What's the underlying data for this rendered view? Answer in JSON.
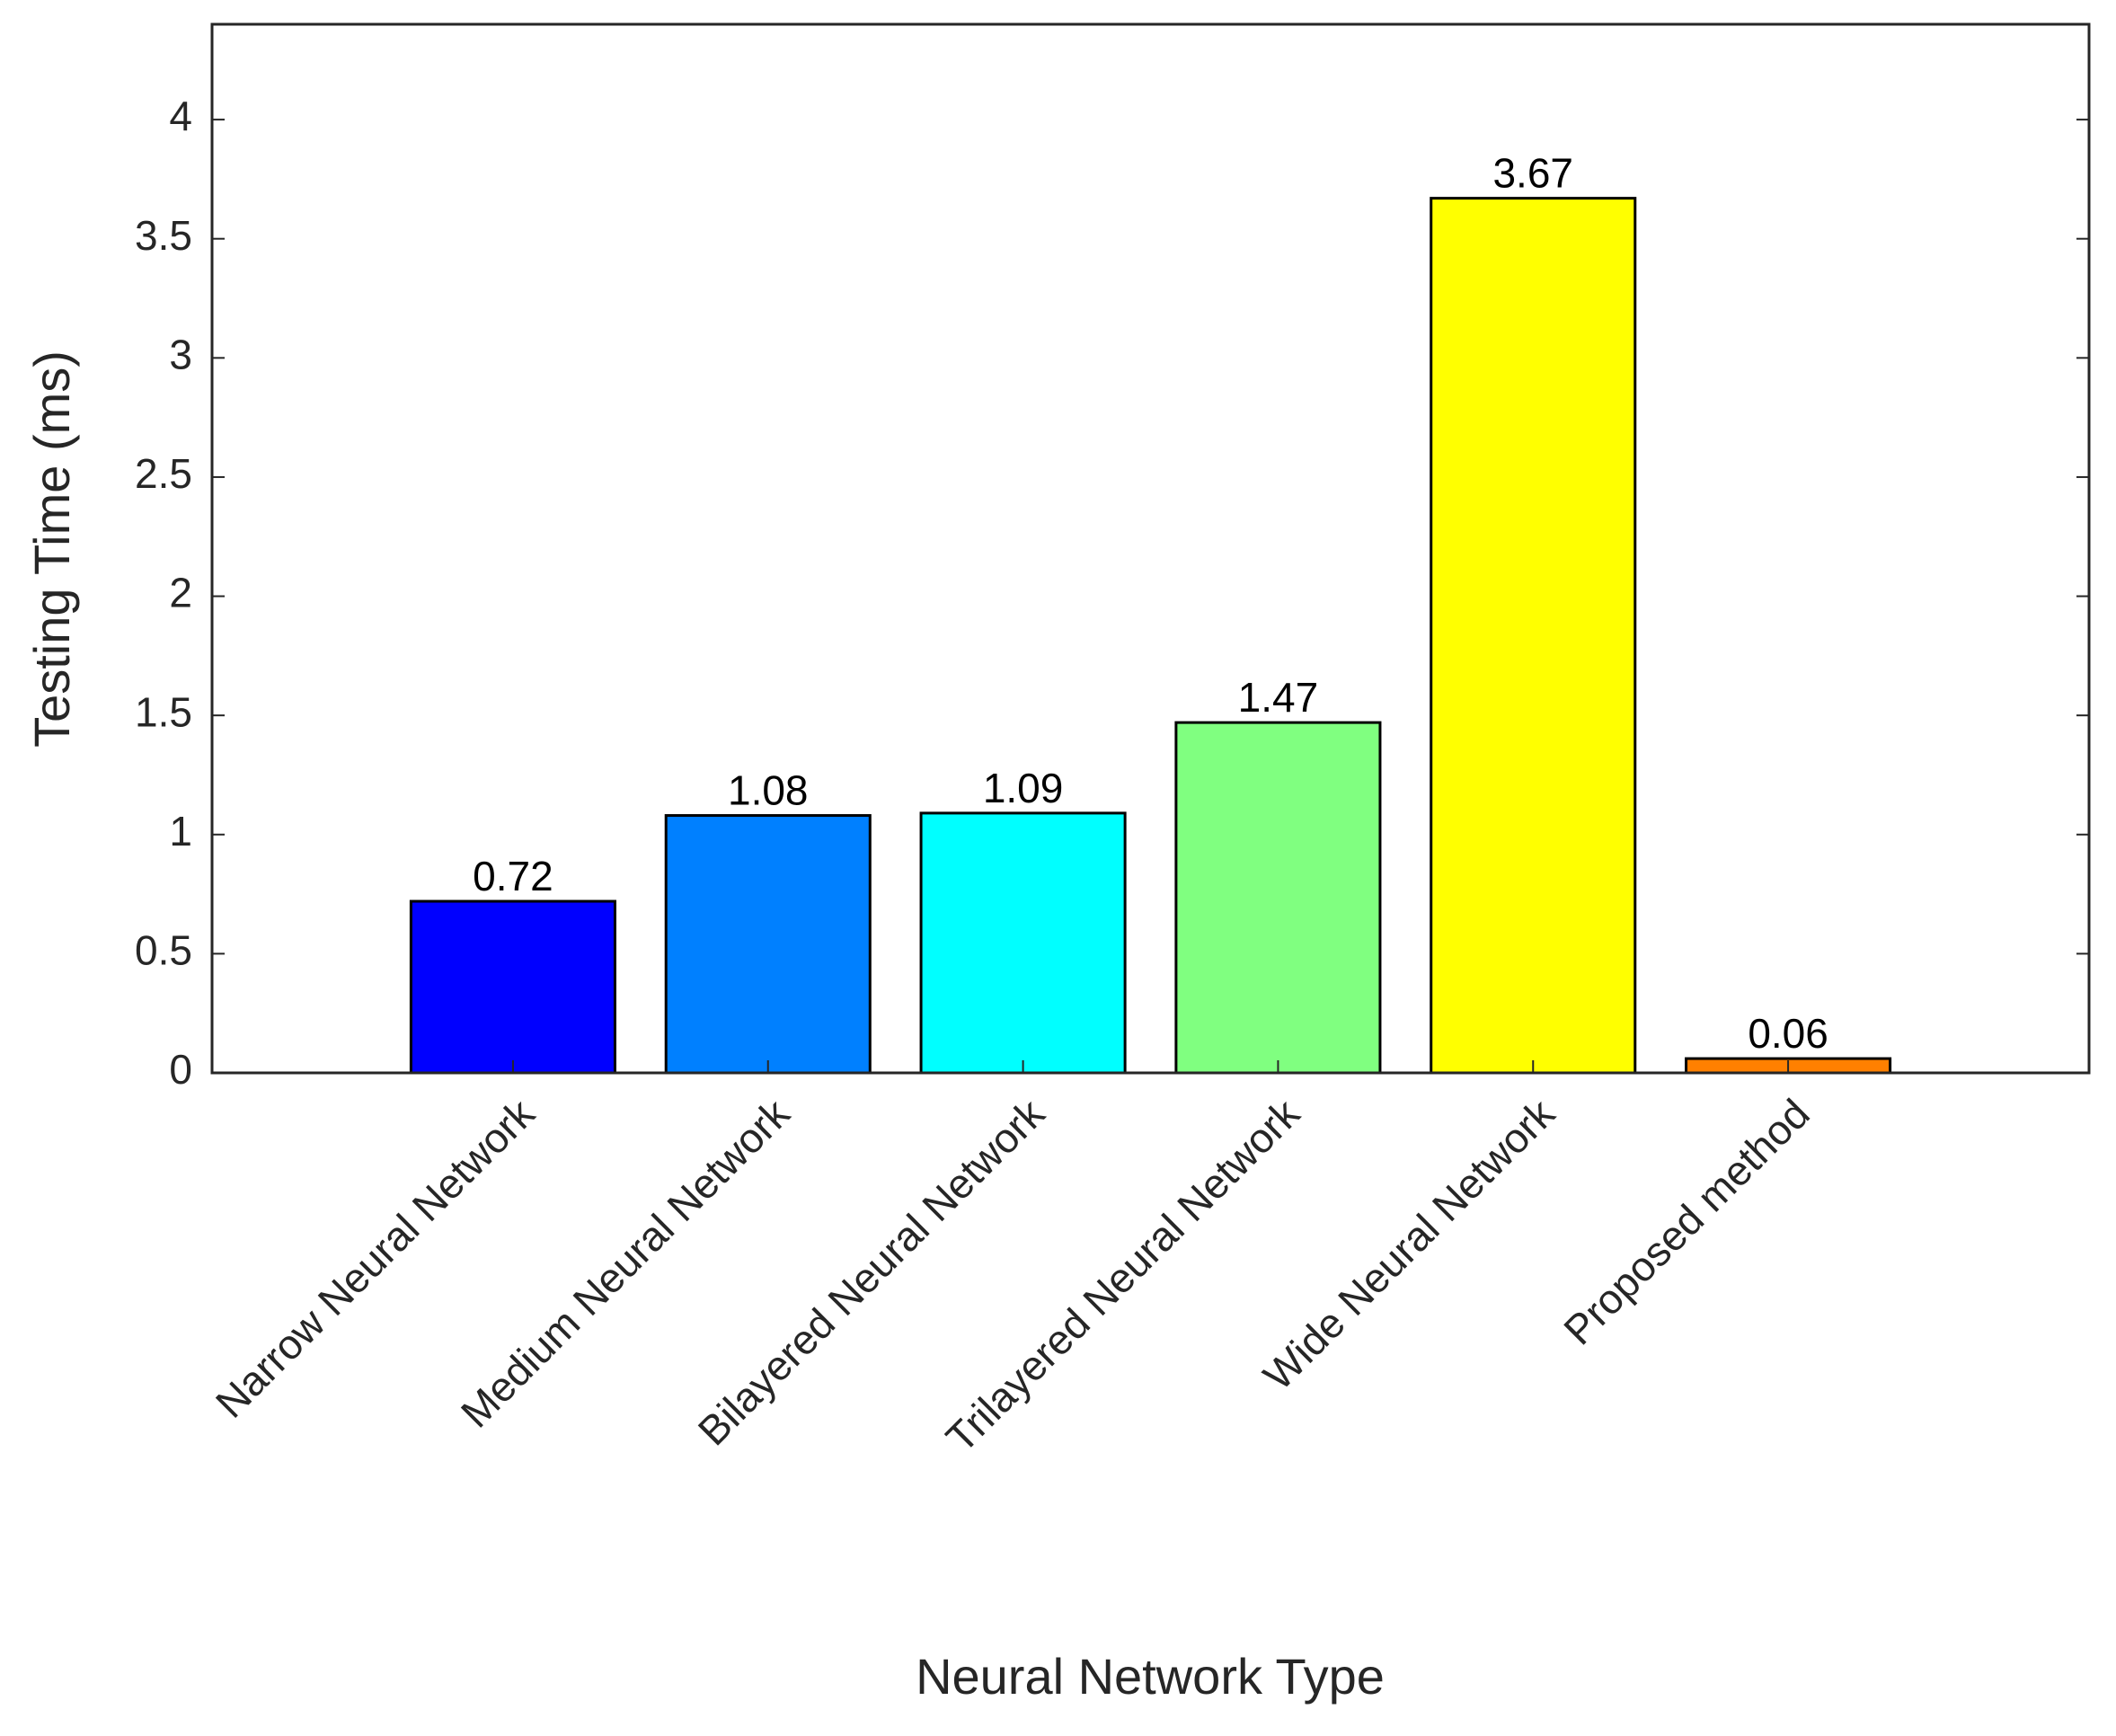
{
  "chart_data": {
    "type": "bar",
    "x_label": "Neural Network Type",
    "y_label": "Testing Time (ms)",
    "categories": [
      "Narrow Neural Network",
      "Medium Neural Network",
      "Bilayered Neural Network",
      "Trilayered Neural Network",
      "Wide Neural Network",
      "Proposed method"
    ],
    "values": [
      0.72,
      1.08,
      1.09,
      1.47,
      3.67,
      0.06
    ],
    "colors": [
      "#0000ff",
      "#0080ff",
      "#00ffff",
      "#80ff80",
      "#ffff00",
      "#ff8000"
    ],
    "ylim": [
      0,
      4.4
    ],
    "yticks": [
      0,
      0.5,
      1,
      1.5,
      2,
      2.5,
      3,
      3.5,
      4
    ],
    "grid": false
  }
}
